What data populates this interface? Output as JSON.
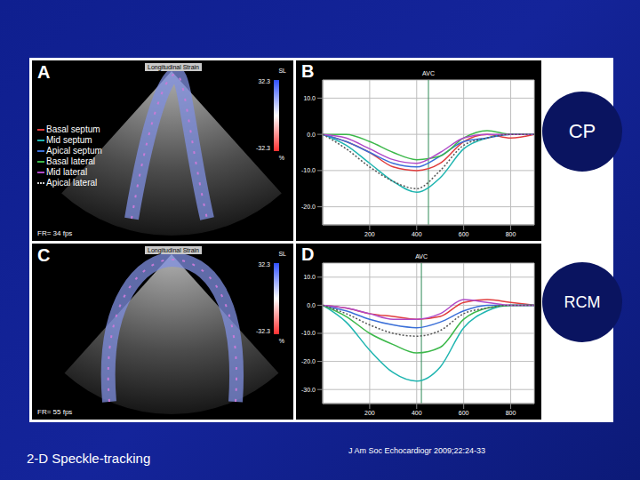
{
  "panels": [
    {
      "label": "A",
      "header": "Longitudinal Strain",
      "frame_rate": "FR= 34 fps",
      "colorbar": {
        "label": "SL",
        "range": [
          -32.3,
          32.3
        ],
        "unit": "%"
      }
    },
    {
      "label": "C",
      "header": "Longitudinal Strain",
      "frame_rate": "FR= 55 fps",
      "colorbar": {
        "label": "SL",
        "range": [
          -32.3,
          32.3
        ],
        "unit": "%"
      }
    }
  ],
  "chart_data": [
    {
      "type": "line",
      "title": "B",
      "x": [
        0,
        100,
        200,
        300,
        400,
        500,
        600,
        700,
        800,
        900
      ],
      "xlim": [
        0,
        900
      ],
      "xticks": [
        200,
        400,
        600,
        800
      ],
      "ylim": [
        -25,
        15
      ],
      "yticks": [
        {
          "value": -20,
          "label": "-20.0"
        },
        {
          "value": -10,
          "label": "-10.0"
        },
        {
          "value": 0,
          "label": "0.0"
        },
        {
          "value": 10,
          "label": "10.0"
        }
      ],
      "grid": true,
      "annotations": [
        {
          "text": "AVC",
          "x": 450
        }
      ],
      "series": [
        {
          "name": "Basal septum",
          "color": "#e03c3c",
          "line_style": "solid",
          "values": [
            0,
            -2,
            -5,
            -9,
            -10,
            -8,
            -2,
            0,
            -1,
            0
          ]
        },
        {
          "name": "Mid septum",
          "color": "#1fb5b0",
          "line_style": "solid",
          "values": [
            0,
            -3,
            -8,
            -13,
            -16,
            -12,
            -4,
            -1,
            0,
            0
          ]
        },
        {
          "name": "Apical septum",
          "color": "#3a6fd8",
          "line_style": "solid",
          "values": [
            0,
            -2,
            -5,
            -8,
            -9,
            -6,
            -2,
            -1,
            0,
            0
          ]
        },
        {
          "name": "Basal lateral",
          "color": "#3cb84a",
          "line_style": "solid",
          "values": [
            0,
            0,
            -2,
            -5,
            -7,
            -6,
            -1,
            1,
            0,
            0
          ]
        },
        {
          "name": "Mid lateral",
          "color": "#b04ac8",
          "line_style": "solid",
          "values": [
            0,
            -1,
            -4,
            -7,
            -8,
            -5,
            -1,
            0,
            0,
            0
          ]
        },
        {
          "name": "Apical lateral",
          "color": "#555555",
          "line_style": "dotted",
          "values": [
            0,
            -4,
            -9,
            -13,
            -15,
            -10,
            -3,
            -1,
            0,
            0
          ]
        }
      ]
    },
    {
      "type": "line",
      "title": "D",
      "x": [
        0,
        100,
        200,
        300,
        400,
        500,
        600,
        700,
        800,
        900
      ],
      "xlim": [
        0,
        900
      ],
      "xticks": [
        200,
        400,
        600,
        800
      ],
      "ylim": [
        -35,
        15
      ],
      "yticks": [
        {
          "value": -30,
          "label": "-30.0"
        },
        {
          "value": -20,
          "label": "-20.0"
        },
        {
          "value": -10,
          "label": "-10.0"
        },
        {
          "value": 0,
          "label": "0.0"
        },
        {
          "value": 10,
          "label": "10.0"
        }
      ],
      "grid": true,
      "annotations": [
        {
          "text": "AVC",
          "x": 420
        }
      ],
      "series": [
        {
          "name": "Basal septum",
          "color": "#e03c3c",
          "line_style": "solid",
          "values": [
            0,
            -1,
            -3,
            -4,
            -5,
            -4,
            1,
            2,
            1,
            0
          ]
        },
        {
          "name": "Mid septum",
          "color": "#1fb5b0",
          "line_style": "solid",
          "values": [
            0,
            -6,
            -16,
            -24,
            -27,
            -22,
            -8,
            -2,
            0,
            0
          ]
        },
        {
          "name": "Apical septum",
          "color": "#3a6fd8",
          "line_style": "solid",
          "values": [
            0,
            -2,
            -5,
            -7,
            -8,
            -6,
            -2,
            0,
            0,
            0
          ]
        },
        {
          "name": "Basal lateral",
          "color": "#3cb84a",
          "line_style": "solid",
          "values": [
            0,
            -4,
            -10,
            -14,
            -17,
            -15,
            -5,
            -1,
            0,
            0
          ]
        },
        {
          "name": "Mid lateral",
          "color": "#b04ac8",
          "line_style": "solid",
          "values": [
            0,
            -1,
            -3,
            -5,
            -5,
            -3,
            2,
            1,
            0,
            0
          ]
        },
        {
          "name": "Apical lateral",
          "color": "#555555",
          "line_style": "dotted",
          "values": [
            0,
            -3,
            -7,
            -10,
            -11,
            -9,
            -3,
            -1,
            0,
            0
          ]
        }
      ]
    }
  ],
  "side_labels": [
    "CP",
    "RCM"
  ],
  "footer": {
    "left": "2-D Speckle-tracking",
    "citation": "J Am Soc Echocardiogr 2009;22:24-33"
  }
}
